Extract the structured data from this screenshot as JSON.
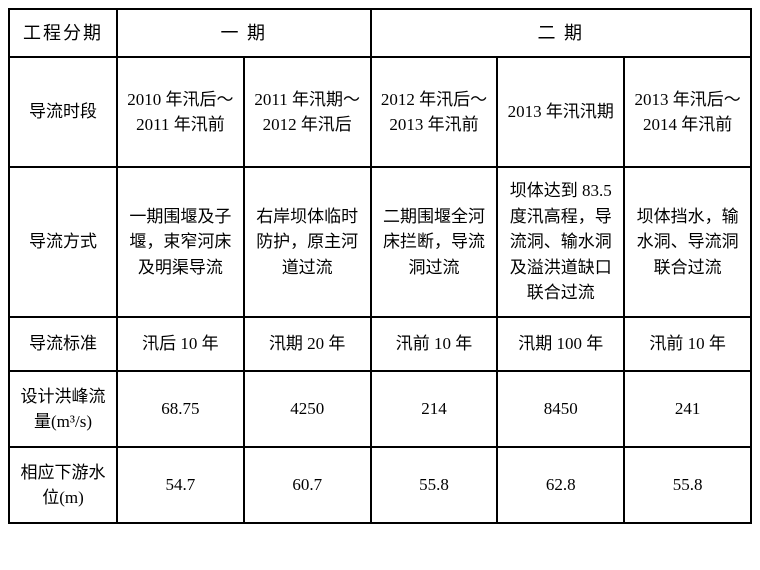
{
  "table": {
    "border_color": "#000000",
    "background_color": "#ffffff",
    "text_color": "#000000",
    "font_family": "SimSun",
    "headers": {
      "phase_label": "工程分期",
      "phase1": "一 期",
      "phase2": "二 期"
    },
    "row_labels": {
      "period": "导流时段",
      "method": "导流方式",
      "standard": "导流标准",
      "flow": "设计洪峰流量(m³/s)",
      "level": "相应下游水位(m)"
    },
    "columns": [
      {
        "period": "2010 年汛后～2011 年汛前",
        "method": "一期围堰及子堰，束窄河床及明渠导流",
        "standard": "汛后 10 年",
        "flow": "68.75",
        "level": "54.7"
      },
      {
        "period": "2011 年汛期～2012 年汛后",
        "method": "右岸坝体临时防护，原主河道过流",
        "standard": "汛期 20 年",
        "flow": "4250",
        "level": "60.7"
      },
      {
        "period": "2012 年汛后～2013 年汛前",
        "method": "二期围堰全河床拦断，导流洞过流",
        "standard": "汛前 10 年",
        "flow": "214",
        "level": "55.8"
      },
      {
        "period": "2013 年汛汛期",
        "method": "坝体达到 83.5 度汛高程，导流洞、输水洞及溢洪道缺口联合过流",
        "standard": "汛期 100 年",
        "flow": "8450",
        "level": "62.8"
      },
      {
        "period": "2013 年汛后～2014 年汛前",
        "method": "坝体挡水，输水洞、导流洞联合过流",
        "standard": "汛前 10 年",
        "flow": "241",
        "level": "55.8"
      }
    ]
  }
}
